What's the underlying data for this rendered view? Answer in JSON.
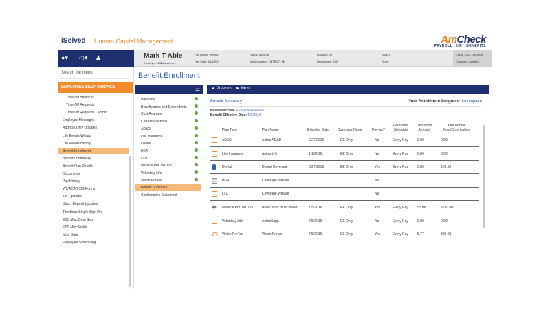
{
  "brand": {
    "isolved": "iSolved",
    "hcm": "Human Capital Management",
    "amcheck_a": "Am",
    "amcheck_b": "Check",
    "amcheck_tag": "PAYROLL · HR · BENEFITS"
  },
  "nav_icons": [
    "user-icon",
    "clock-icon",
    "person-icon"
  ],
  "employee": {
    "name": "Mark T Able",
    "employee_label": "Employee: 101",
    "status_label": "Status:",
    "status": "Active",
    "hire_date": "Hire Date: 5/1/2000",
    "pay_group": "Pay Group: Weekly",
    "work_location": "Work Location: DETROIT, MI",
    "hourly": "Hourly: ####.##",
    "location": "Location: MI",
    "department": "Department: 230",
    "shift": "Shift: 3",
    "grant": "Grant:",
    "client": "Client: 1014 - Acme16",
    "company": "Company: Acme16"
  },
  "sidebar": {
    "search_placeholder": "Search the menu",
    "section": "EMPLOYEE SELF SERVICE",
    "items": [
      {
        "label": "Time Off Balances",
        "indent": true
      },
      {
        "label": "Time Off Requests",
        "indent": true
      },
      {
        "label": "Time Off Requests - Admin",
        "indent": true
      },
      {
        "label": "Employee Messages",
        "indent": false
      },
      {
        "label": "Address Only Updates",
        "indent": false
      },
      {
        "label": "Life Events Wizard",
        "indent": false
      },
      {
        "label": "Life Events History",
        "indent": false
      },
      {
        "label": "Benefit Enrollment",
        "indent": false,
        "active": true
      },
      {
        "label": "Benefits Summary",
        "indent": false
      },
      {
        "label": "Benefit Plan Details",
        "indent": false
      },
      {
        "label": "Documents",
        "indent": false
      },
      {
        "label": "Pay History",
        "indent": false
      },
      {
        "label": "W2/ACA/1099 Forms",
        "indent": false
      },
      {
        "label": "Tax Updates",
        "indent": false
      },
      {
        "label": "Direct Deposit Updates",
        "indent": false
      },
      {
        "label": "Timeforce Single Sign On",
        "indent": false
      },
      {
        "label": "ESS Misc Data Sets",
        "indent": false
      },
      {
        "label": "ESS Misc Fields",
        "indent": false
      },
      {
        "label": "Misc Data",
        "indent": false
      },
      {
        "label": "Employee Scheduling",
        "indent": false
      }
    ]
  },
  "page_title": "Benefit Enrollment",
  "steps": [
    {
      "label": "Welcome",
      "done": true
    },
    {
      "label": "Beneficiaries and Dependents",
      "done": true
    },
    {
      "label": "Cost Analysis",
      "done": true
    },
    {
      "label": "Current Elections",
      "done": true
    },
    {
      "label": "AD&D",
      "done": true
    },
    {
      "label": "Life Insurance",
      "done": true
    },
    {
      "label": "Dental",
      "done": true
    },
    {
      "label": "HSA",
      "done": true
    },
    {
      "label": "LTD",
      "done": true
    },
    {
      "label": "Medical Pre Tax 125",
      "done": true
    },
    {
      "label": "Voluntary Life",
      "done": true
    },
    {
      "label": "Vision PreTax",
      "done": true
    },
    {
      "label": "Benefit Summary",
      "done": false,
      "active": true
    },
    {
      "label": "Confirmation Statement",
      "done": false
    }
  ],
  "toolbar": {
    "previous": "◄ Previous",
    "next": "► Next"
  },
  "summary": {
    "title": "Benefit Summary",
    "progress_label": "Your Enrollment Progress:",
    "progress_value": "Incomplete",
    "period_label": "Enrollment Period:",
    "period_value": "1/1/2016 to 12/31/2016",
    "eff_label": "Benefit Effective Date:",
    "eff_value": "1/1/2016",
    "headers": {
      "plan_type": "Plan Type",
      "plan_name": "Plan Name",
      "eff_date": "Effective Date",
      "coverage": "Coverage Name",
      "pretax": "Pre-tax?",
      "schedule": "Deduction Schedule",
      "amount": "Deduction Amount",
      "annual": "Your Annual Cost/Contribution"
    },
    "rows": [
      {
        "icon": "add-icon",
        "type": "AD&D",
        "name": "Aetna AD&D",
        "date": "6/27/2016",
        "coverage": "EE Only",
        "pretax": "No",
        "schedule": "Every Pay",
        "amount": "0.00",
        "annual": "0.00"
      },
      {
        "icon": "life-icon",
        "type": "Life Insurance",
        "name": "Aetna Life",
        "date": "1/1/2016",
        "coverage": "EE Only",
        "pretax": "No",
        "schedule": "Every Pay",
        "amount": "0.00",
        "annual": "0.00"
      },
      {
        "icon": "tooth-icon",
        "type": "Dental",
        "name": "Dental Coverage",
        "date": "6/27/2016",
        "coverage": "EE Only",
        "pretax": "Yes",
        "schedule": "Every Pay",
        "amount": "3.65",
        "annual": "189.60"
      },
      {
        "icon": "hsa-icon",
        "type": "HSA",
        "name": "Coverage Waived",
        "date": "",
        "coverage": "",
        "pretax": "No",
        "schedule": "",
        "amount": "",
        "annual": ""
      },
      {
        "icon": "ltd-icon",
        "type": "LTD",
        "name": "Coverage Waived",
        "date": "",
        "coverage": "",
        "pretax": "No",
        "schedule": "",
        "amount": "",
        "annual": ""
      },
      {
        "icon": "medical-icon",
        "type": "Medical Pre Tax 125",
        "name": "Blue Cross Blue Shield",
        "date": "7/5/2016",
        "coverage": "EE Only",
        "pretax": "Yes",
        "schedule": "Every Pay",
        "amount": "53.08",
        "annual": "2750.00"
      },
      {
        "icon": "voluntary-life-icon",
        "type": "Voluntary Life",
        "name": "AetnaSupp",
        "date": "7/5/2016",
        "coverage": "EE Only",
        "pretax": "No",
        "schedule": "Every Pay",
        "amount": "0.00",
        "annual": "0.00"
      },
      {
        "icon": "vision-icon",
        "type": "Vision PreTax",
        "name": "Vision Pretax",
        "date": "7/5/2016",
        "coverage": "EE Only",
        "pretax": "Yes",
        "schedule": "Every Pay",
        "amount": "5.77",
        "annual": "300.00"
      }
    ]
  },
  "colors": {
    "navy": "#1e2f6f",
    "orange": "#ef8c2c",
    "highlight": "#f5ba7a",
    "link_blue": "#2e5ea6",
    "check_green": "#5aaa3c"
  }
}
